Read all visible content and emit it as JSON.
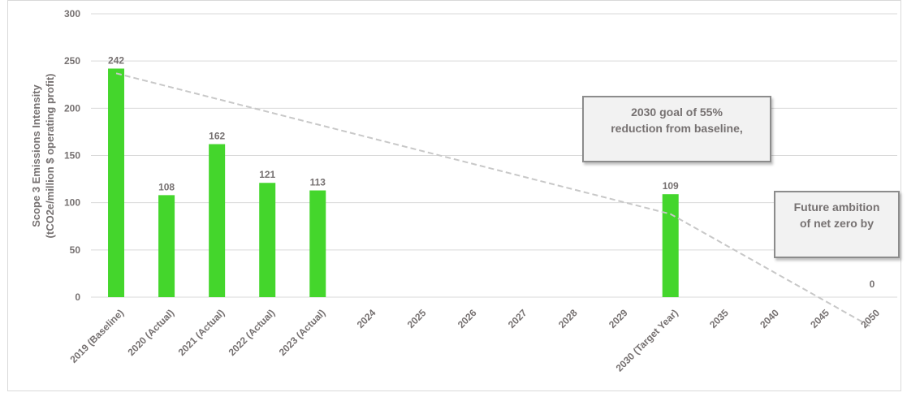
{
  "chart_data": {
    "type": "bar",
    "categories": [
      "2019 (Baseline)",
      "2020 (Actual)",
      "2021 (Actual)",
      "2022 (Actual)",
      "2023 (Actual)",
      "2024",
      "2025",
      "2026",
      "2027",
      "2028",
      "2029",
      "2030 (Target Year)",
      "2035",
      "2040",
      "2045",
      "2050"
    ],
    "values": [
      242,
      108,
      162,
      121,
      113,
      null,
      null,
      null,
      null,
      null,
      null,
      109,
      null,
      null,
      null,
      0
    ],
    "data_labels": [
      "242",
      "108",
      "162",
      "121",
      "113",
      "",
      "",
      "",
      "",
      "",
      "",
      "109",
      "",
      "",
      "",
      "0"
    ],
    "ylabel_lines": [
      "Scope 3 Emissions Intensity",
      "(tCO2e/million $ operating profit)"
    ],
    "ylim": [
      0,
      300
    ],
    "yticks": [
      0,
      50,
      100,
      150,
      200,
      250,
      300
    ],
    "grid": true,
    "bar_color": "#44d62c",
    "trendline": {
      "style": "dashed",
      "color": "#c8c8c8",
      "points": [
        {
          "category": "2019 (Baseline)",
          "value": 237
        },
        {
          "category": "2030 (Target Year)",
          "value": 88
        },
        {
          "category": "2050",
          "value": -32
        }
      ]
    },
    "annotations": [
      {
        "lines": [
          "2030 goal of 55%",
          "reduction from baseline,"
        ]
      },
      {
        "lines": [
          "Future ambition",
          "of net zero by"
        ]
      }
    ]
  }
}
